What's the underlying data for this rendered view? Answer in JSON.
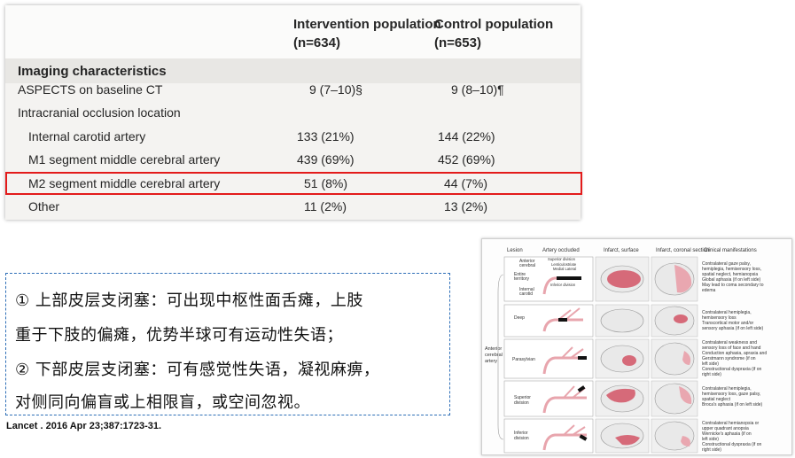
{
  "table": {
    "col_intervention": [
      "Intervention population",
      "(n=634)"
    ],
    "col_control": [
      "Control population",
      "(n=653)"
    ],
    "section": "Imaging characteristics",
    "rows": [
      {
        "label": "ASPECTS on baseline CT",
        "intervention": "9 (7–10)§",
        "control": "9 (8–10)¶"
      },
      {
        "label": "Intracranial occlusion location",
        "intervention": "",
        "control": ""
      },
      {
        "label": "Internal carotid artery",
        "intervention": "133 (21%)",
        "control": "144 (22%)"
      },
      {
        "label": "M1 segment middle cerebral artery",
        "intervention": "439 (69%)",
        "control": "452 (69%)"
      },
      {
        "label": "M2 segment middle cerebral artery",
        "intervention": "51 (8%)",
        "control": "44 (7%)"
      },
      {
        "label": "Other",
        "intervention": "11 (2%)",
        "control": "13 (2%)"
      }
    ],
    "highlight_color": "#e31b1b"
  },
  "citation": "Lancet . 2016 Apr 23;387:1723-31.",
  "notes": [
    "① 上部皮层支闭塞：可出现中枢性面舌瘫，上肢",
    "   重于下肢的偏瘫，优势半球可有运动性失语；",
    "② 下部皮层支闭塞：可有感觉性失语，凝视麻痹，",
    "   对侧同向偏盲或上相限盲，或空间忽视。"
  ],
  "figure": {
    "headers": [
      "Lesion",
      "Artery occluded",
      "Infarct, surface",
      "Infarct, coronal section",
      "Clinical manifestations"
    ],
    "group_label": [
      "Anterior",
      "cerebral",
      "artery"
    ],
    "rows": [
      {
        "lesion": [
          "Anterior",
          "cerebral",
          "Entire",
          "territory",
          "Internal",
          "carotid"
        ],
        "arteries": [
          "Superior division",
          "Lenticulostriate",
          "Medial  Lateral",
          "Inferior division"
        ],
        "clinical": [
          "Contralateral gaze palsy,",
          "hemiplegia, hemisensory loss,",
          "spatial neglect, hemianopsia",
          "Global aphasia (if on left side)",
          "May lead to coma secondary to",
          "edema"
        ]
      },
      {
        "lesion": [
          "Deep"
        ],
        "arteries": [],
        "clinical": [
          "Contralateral hemiplegia,",
          "hemisensory loss",
          "Transcortical motor and/or",
          "sensory aphasia (if on left side)"
        ]
      },
      {
        "lesion": [
          "Parasylvian"
        ],
        "arteries": [],
        "clinical": [
          "Contralateral weakness and",
          "sensory loss of face and hand",
          "Conduction aphasia, apraxia and",
          "Gerstmann syndrome (if on",
          "left side)",
          "Constructional dyspraxia (if on",
          "right side)"
        ]
      },
      {
        "lesion": [
          "Superior",
          "division"
        ],
        "arteries": [],
        "clinical": [
          "Contralateral hemiplegia,",
          "hemisensory loss, gaze palsy,",
          "spatial neglect",
          "Broca's aphasia (if on left side)"
        ]
      },
      {
        "lesion": [
          "Inferior",
          "division"
        ],
        "arteries": [],
        "clinical": [
          "Contralateral hemianopsia or",
          "upper quadrant anopsia",
          "Wernicke's aphasia (if on",
          "left side)",
          "Constructional dyspraxia (if on",
          "right side)"
        ]
      }
    ]
  }
}
